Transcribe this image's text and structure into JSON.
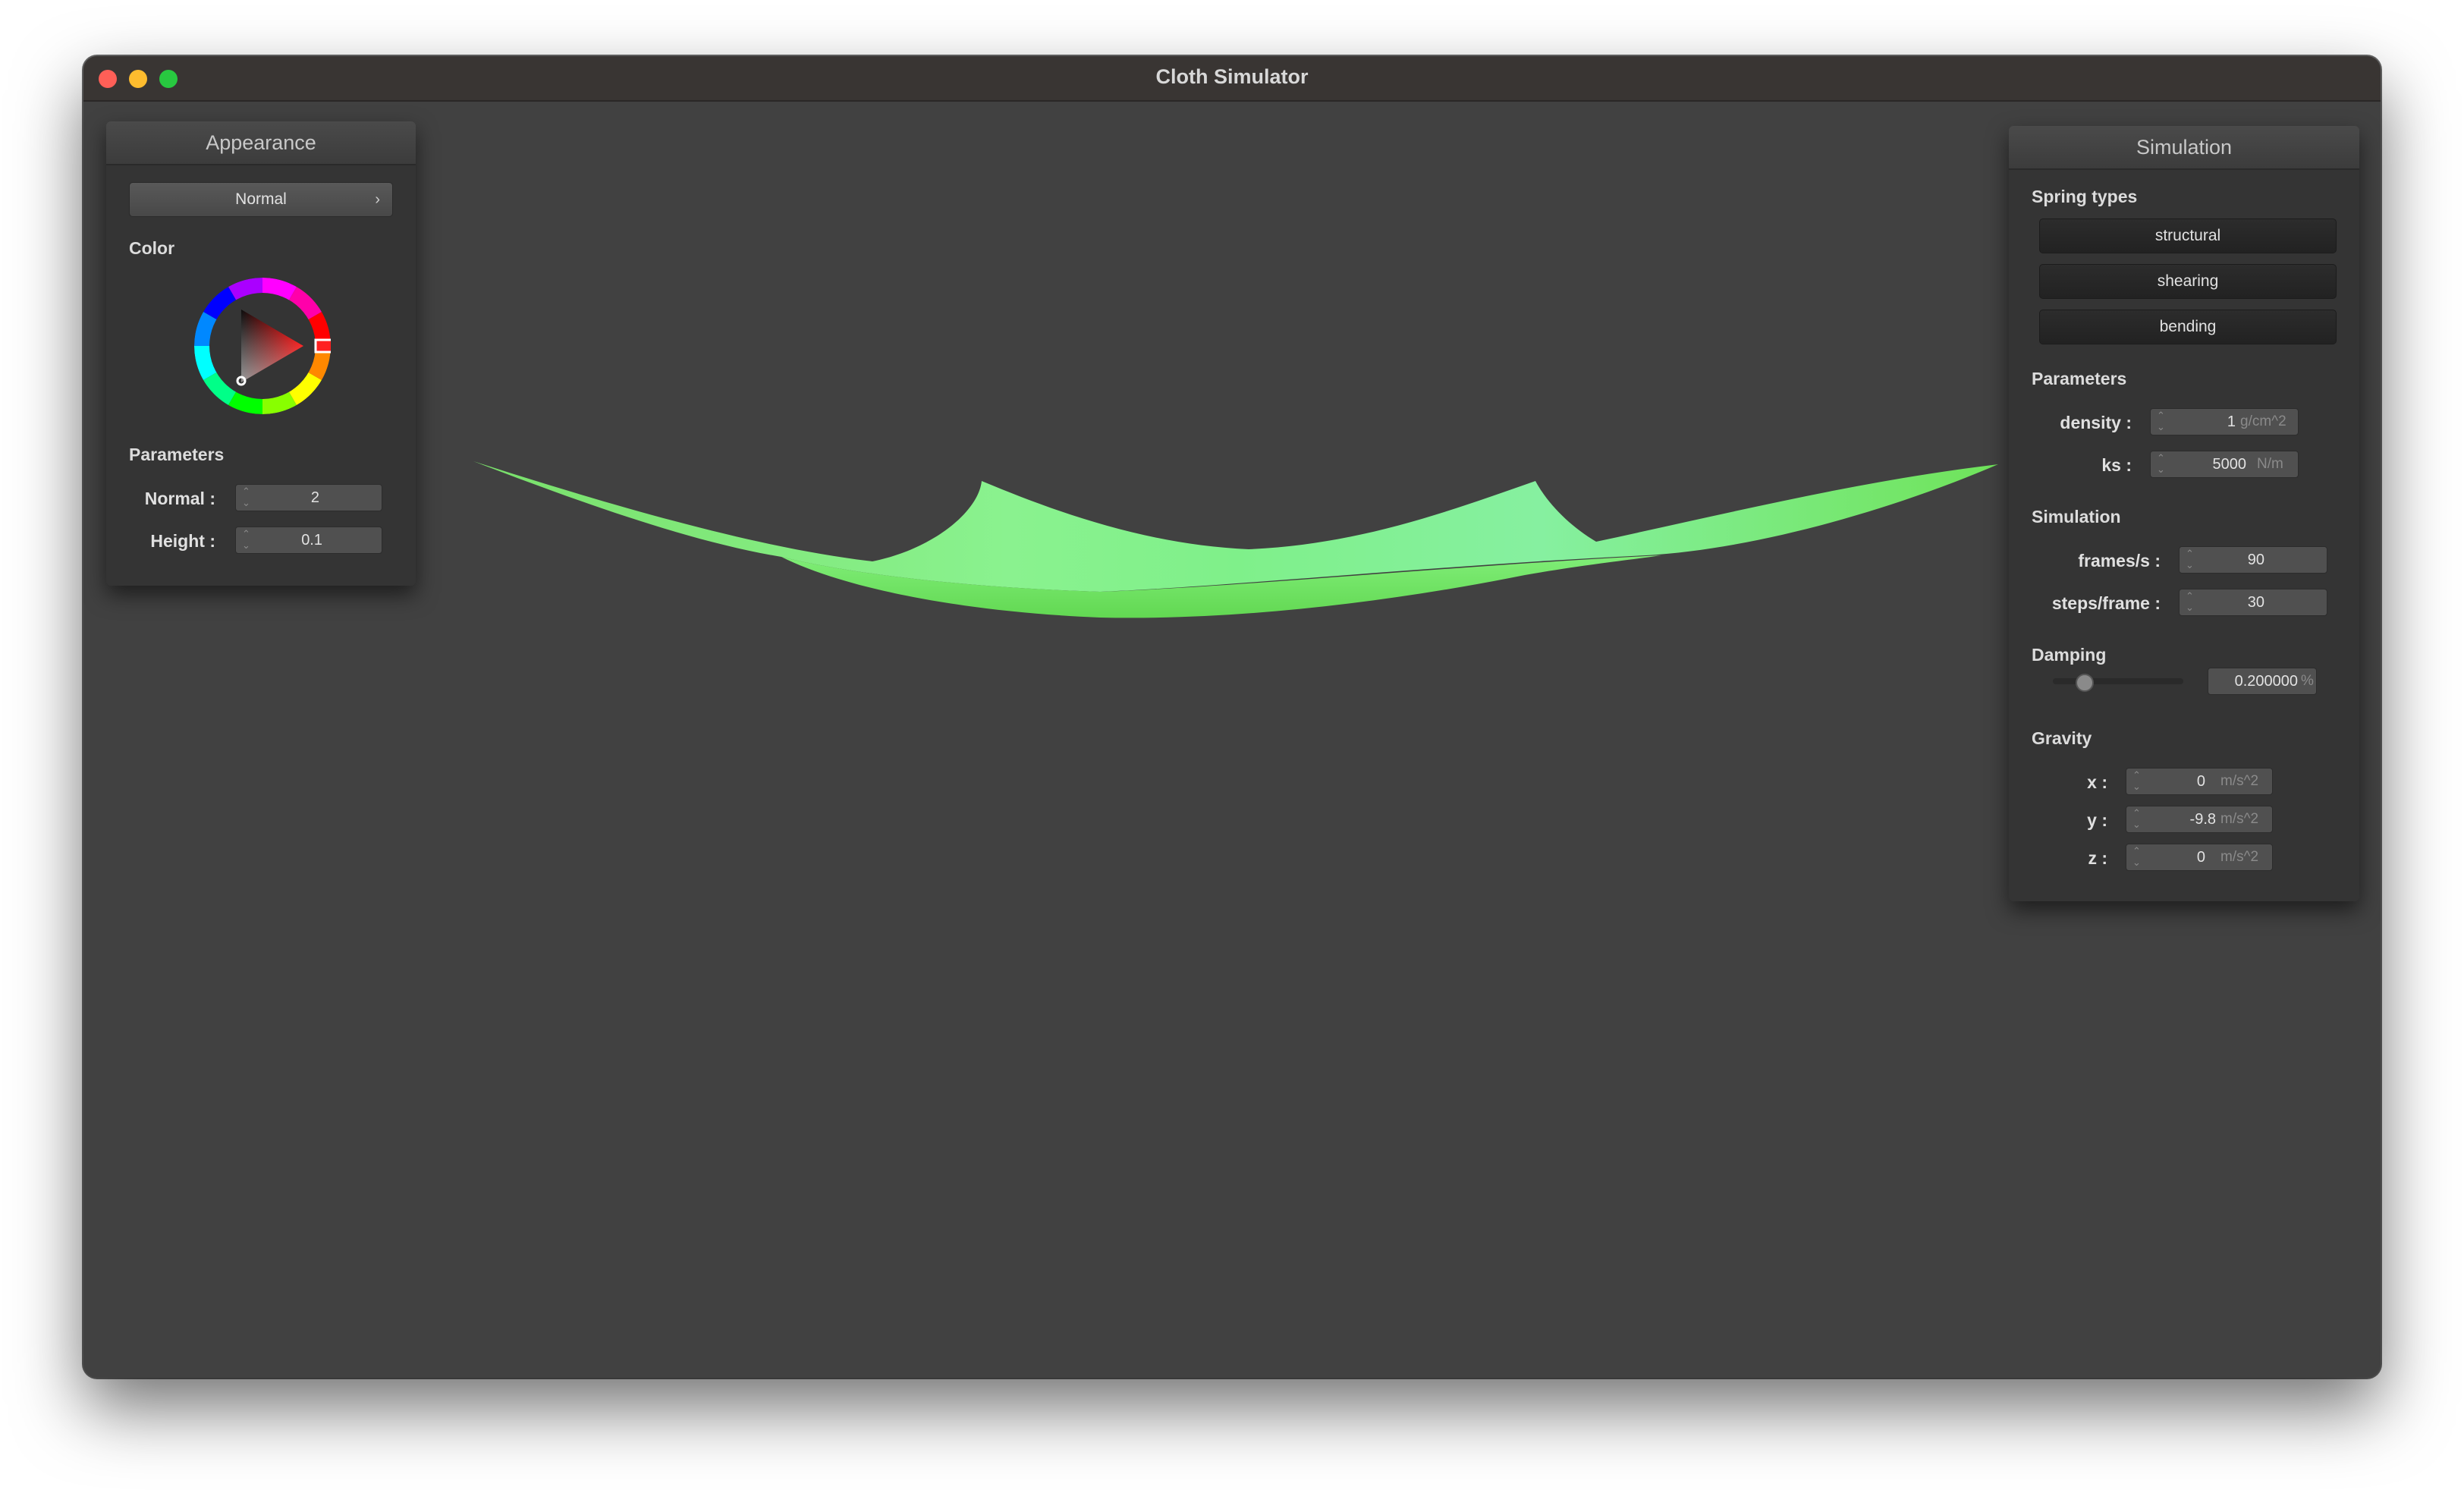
{
  "window": {
    "title": "Cloth Simulator"
  },
  "appearance": {
    "header": "Appearance",
    "shader_select": "Normal",
    "color_label": "Color",
    "params_label": "Parameters",
    "normal_label": "Normal :",
    "normal_value": "2",
    "height_label": "Height :",
    "height_value": "0.1",
    "selected_color": "#ff0000"
  },
  "simulation_panel": {
    "header": "Simulation",
    "spring_types_label": "Spring types",
    "spring_buttons": [
      "structural",
      "shearing",
      "bending"
    ],
    "parameters_label": "Parameters",
    "density_label": "density :",
    "density_value": "1",
    "density_unit": "g/cm^2",
    "ks_label": "ks :",
    "ks_value": "5000",
    "ks_unit": "N/m",
    "simulation_label": "Simulation",
    "fps_label": "frames/s :",
    "fps_value": "90",
    "steps_label": "steps/frame :",
    "steps_value": "30",
    "damping_label": "Damping",
    "damping_value": "0.200000",
    "damping_unit": "%",
    "damping_level": 0.2,
    "gravity_label": "Gravity",
    "gx_label": "x :",
    "gx_value": "0",
    "gy_label": "y :",
    "gy_value": "-9.8",
    "gz_label": "z :",
    "gz_value": "0",
    "gravity_unit": "m/s^2"
  },
  "cloth": {
    "color": "#7ef27e"
  }
}
